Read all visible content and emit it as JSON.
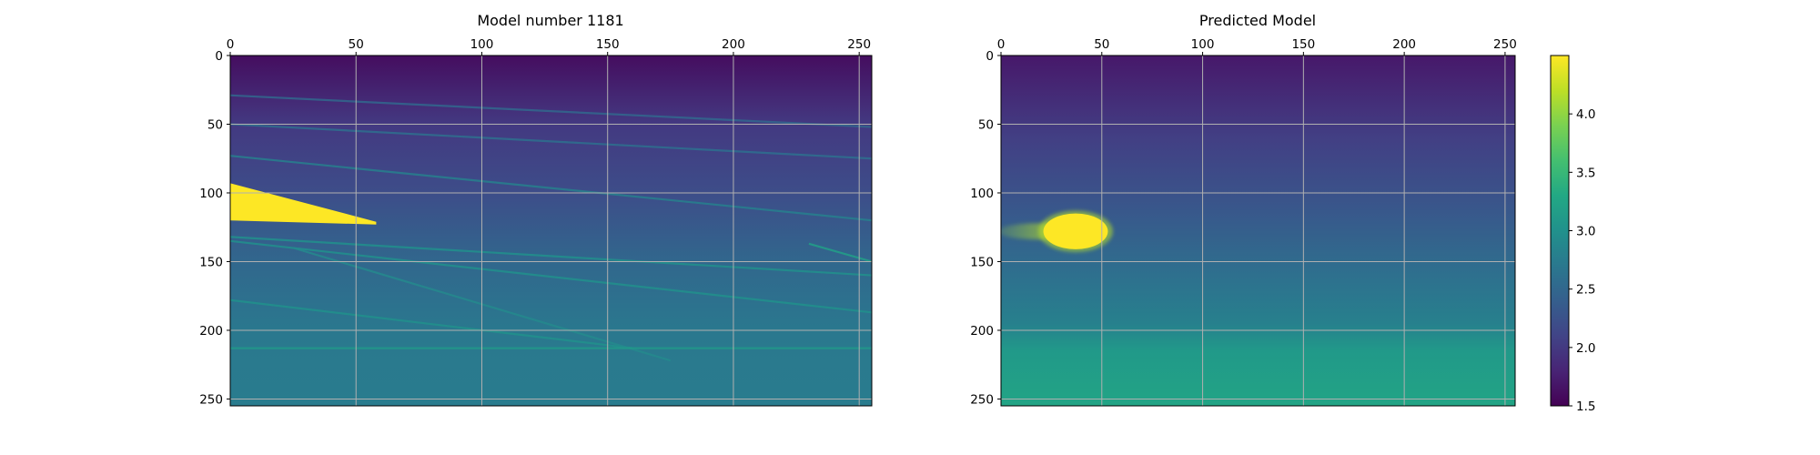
{
  "chart_data": [
    {
      "type": "heatmap",
      "title": "Model number 1181",
      "x_ticks": [
        0,
        50,
        100,
        150,
        200,
        250
      ],
      "y_ticks": [
        0,
        50,
        100,
        150,
        200,
        250
      ],
      "xlim": [
        0,
        255
      ],
      "ylim": [
        255,
        0
      ],
      "x_axis_position": "top",
      "grid": true,
      "colormap": "viridis",
      "value_range": [
        1.5,
        4.5
      ],
      "background_gradient": [
        {
          "depth": 0,
          "value": 1.6
        },
        {
          "depth": 50,
          "value": 2.0
        },
        {
          "depth": 100,
          "value": 2.2
        },
        {
          "depth": 150,
          "value": 2.5
        },
        {
          "depth": 200,
          "value": 2.7
        },
        {
          "depth": 255,
          "value": 2.75
        }
      ],
      "layer_lines": [
        {
          "x1": 0,
          "y1": 29,
          "x2": 255,
          "y2": 52,
          "value": 2.5
        },
        {
          "x1": 0,
          "y1": 50,
          "x2": 255,
          "y2": 75,
          "value": 2.6
        },
        {
          "x1": 0,
          "y1": 73,
          "x2": 255,
          "y2": 120,
          "value": 2.8
        },
        {
          "x1": 0,
          "y1": 132,
          "x2": 255,
          "y2": 160,
          "value": 3.0
        },
        {
          "x1": 0,
          "y1": 135,
          "x2": 255,
          "y2": 187,
          "value": 3.0
        },
        {
          "x1": 0,
          "y1": 178,
          "x2": 160,
          "y2": 213,
          "value": 3.0
        },
        {
          "x1": 25,
          "y1": 140,
          "x2": 175,
          "y2": 222,
          "value": 2.9
        },
        {
          "x1": 0,
          "y1": 213,
          "x2": 255,
          "y2": 213,
          "value": 3.1
        },
        {
          "x1": 230,
          "y1": 137,
          "x2": 255,
          "y2": 150,
          "value": 3.2
        }
      ],
      "anomaly": {
        "shape": "wedge",
        "points": [
          [
            0,
            93
          ],
          [
            58,
            121
          ],
          [
            58,
            123
          ],
          [
            0,
            120
          ]
        ],
        "value": 4.5
      }
    },
    {
      "type": "heatmap",
      "title": "Predicted Model",
      "x_ticks": [
        0,
        50,
        100,
        150,
        200,
        250
      ],
      "y_ticks": [
        0,
        50,
        100,
        150,
        200,
        250
      ],
      "xlim": [
        0,
        255
      ],
      "ylim": [
        255,
        0
      ],
      "x_axis_position": "top",
      "grid": true,
      "colormap": "viridis",
      "value_range": [
        1.5,
        4.5
      ],
      "background_gradient": [
        {
          "depth": 0,
          "value": 1.7
        },
        {
          "depth": 60,
          "value": 2.05
        },
        {
          "depth": 110,
          "value": 2.3
        },
        {
          "depth": 160,
          "value": 2.6
        },
        {
          "depth": 195,
          "value": 2.8
        },
        {
          "depth": 215,
          "value": 3.1
        },
        {
          "depth": 255,
          "value": 3.25
        }
      ],
      "anomaly": {
        "shape": "blob",
        "center": [
          37,
          128
        ],
        "radius": [
          16,
          13
        ],
        "value": 4.5,
        "tail_from_x": 0
      },
      "colorbar": {
        "ticks": [
          1.5,
          2.0,
          2.5,
          3.0,
          3.5,
          4.0
        ],
        "range": [
          1.5,
          4.5
        ]
      }
    }
  ]
}
